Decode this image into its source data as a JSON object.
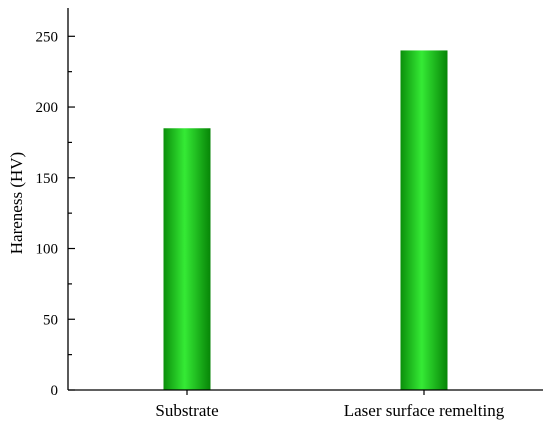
{
  "chart_data": {
    "type": "bar",
    "categories": [
      "Substrate",
      "Laser surface remelting"
    ],
    "values": [
      185,
      240
    ],
    "title": "",
    "xlabel": "",
    "ylabel": "Hareness (HV)",
    "ylim": [
      0,
      270
    ],
    "yticks": [
      0,
      50,
      100,
      150,
      200,
      250
    ],
    "grid": false,
    "colors": {
      "bar_dark": "#0a8a0a",
      "bar_light": "#33e833",
      "bar_mid": "#12c412"
    }
  }
}
